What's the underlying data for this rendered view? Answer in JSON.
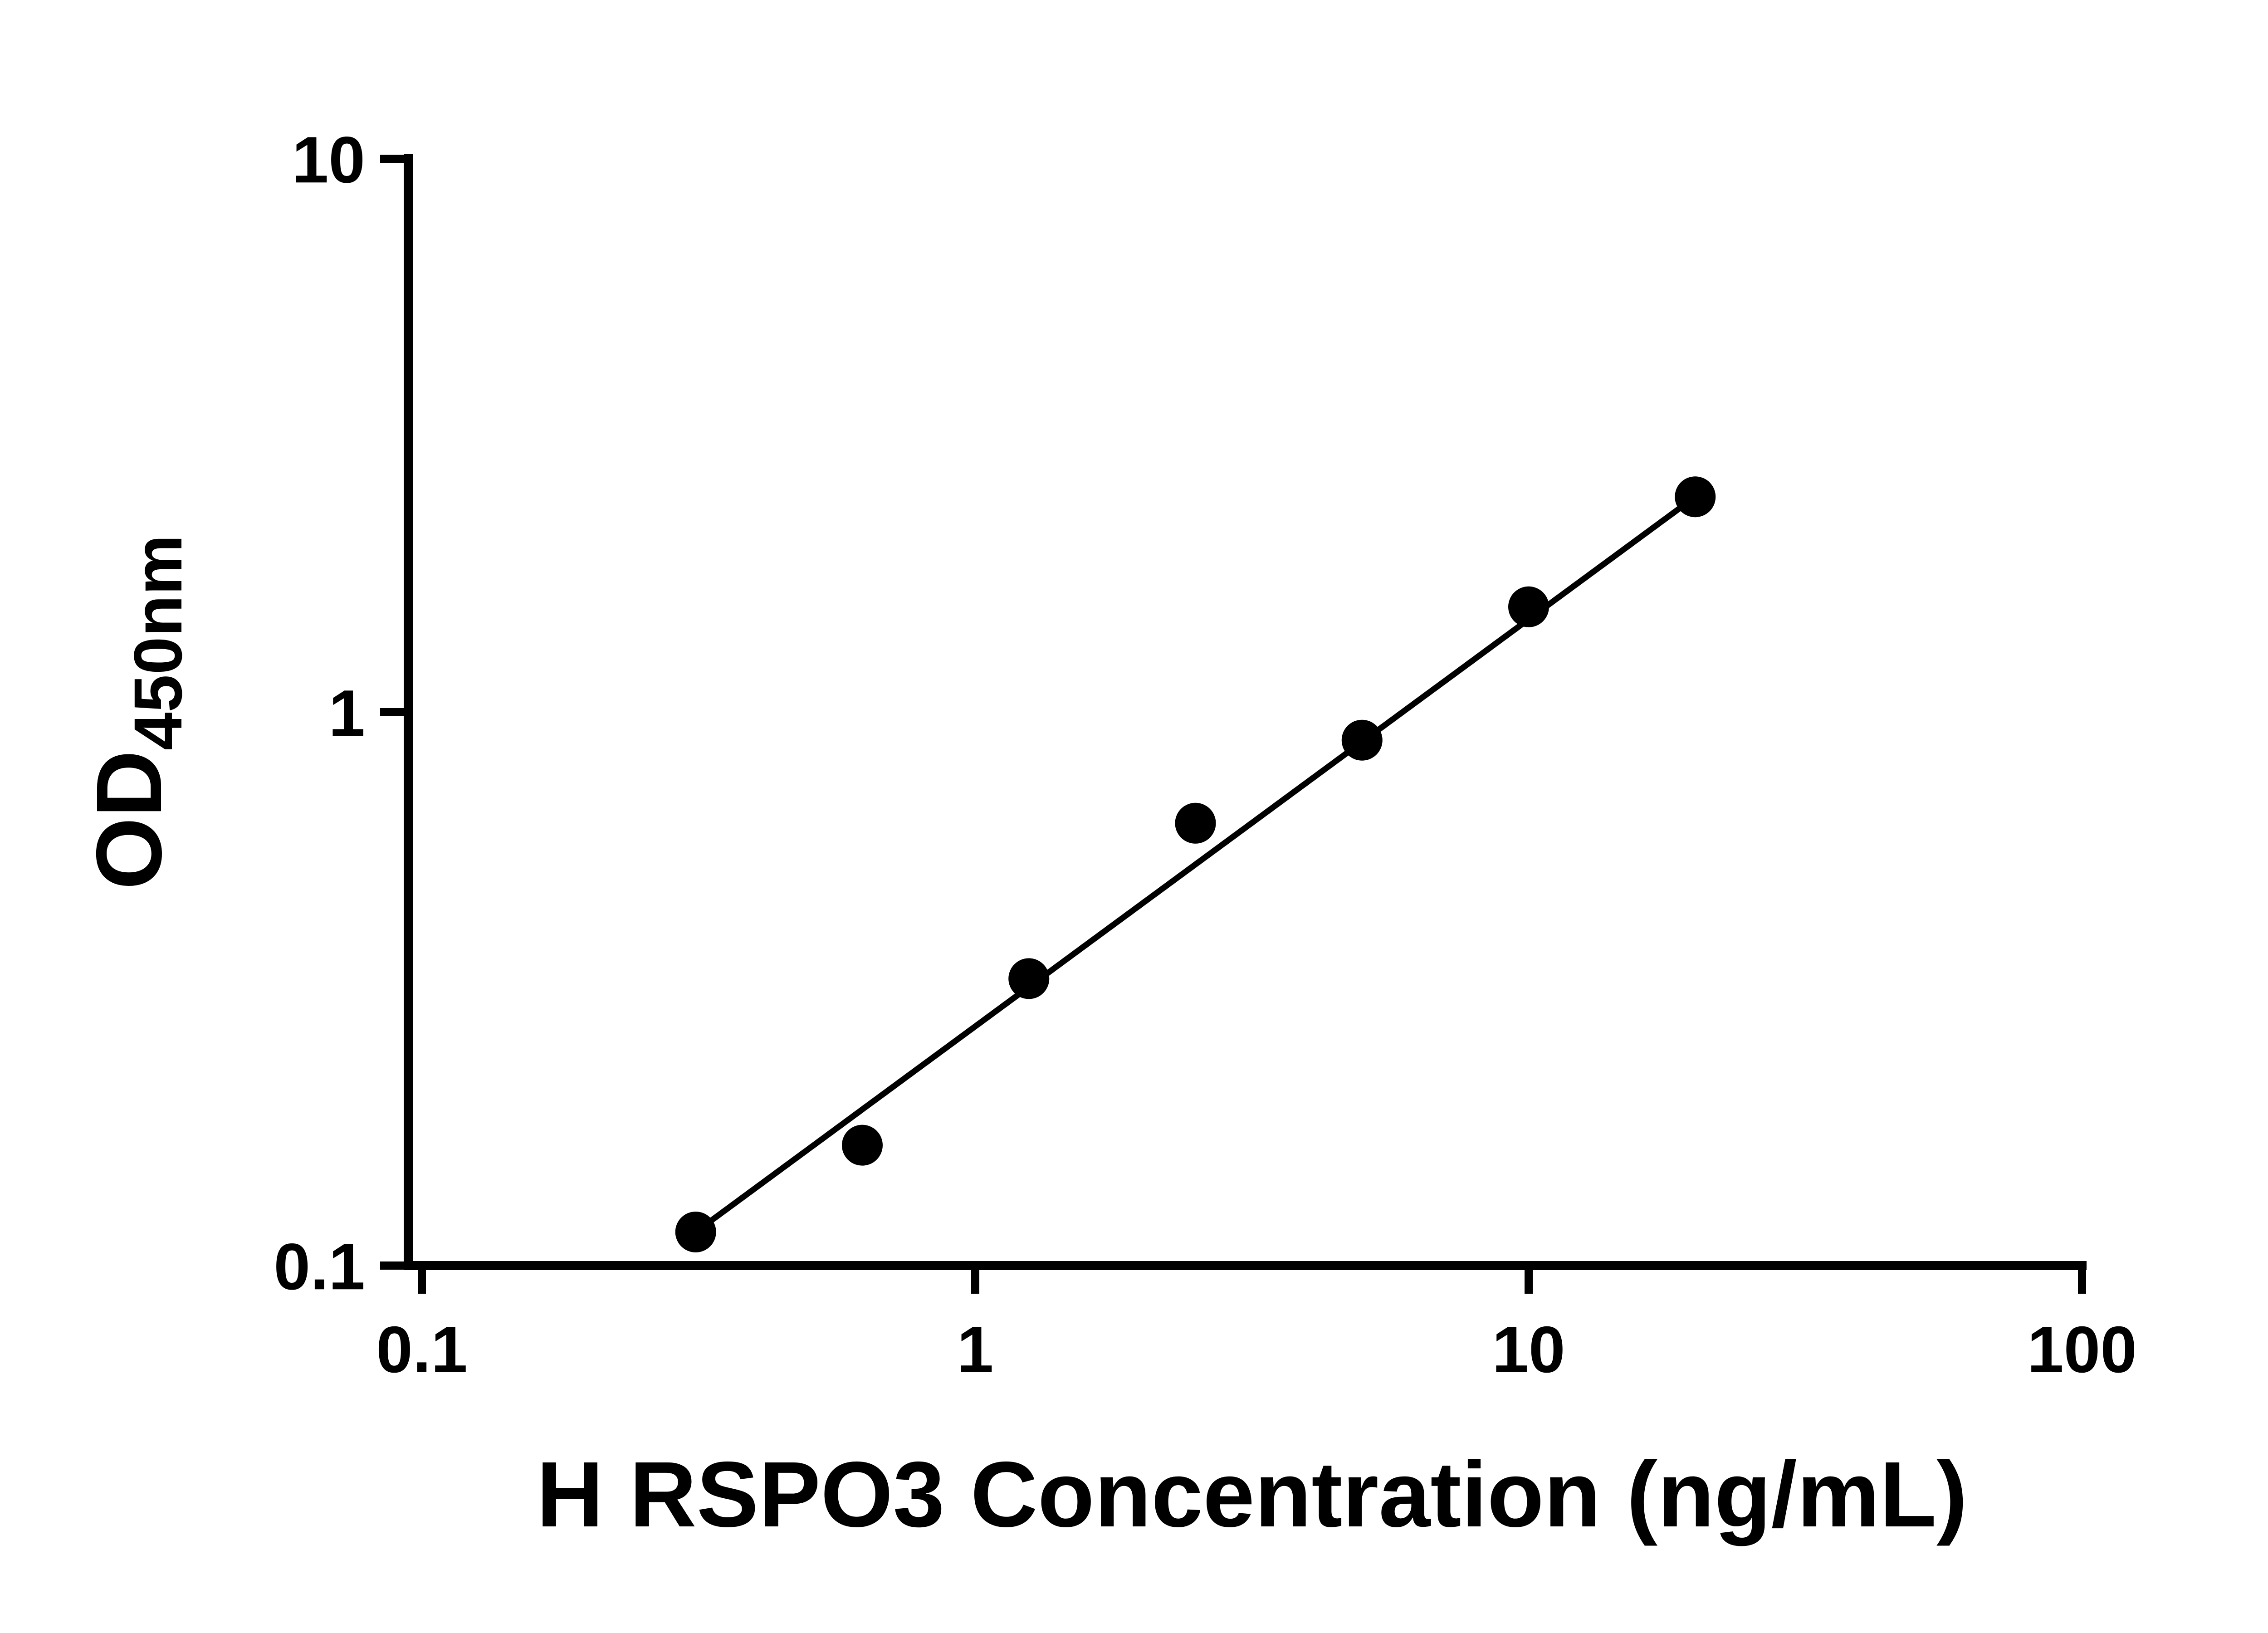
{
  "chart_data": {
    "type": "scatter",
    "title": "",
    "xlabel": "H RSPO3 Concentration (ng/mL)",
    "ylabel_main": "OD",
    "ylabel_sub": "450nm",
    "x_scale": "log",
    "y_scale": "log",
    "xlim": [
      0.1,
      100
    ],
    "ylim": [
      0.1,
      10
    ],
    "x_ticks": [
      0.1,
      1,
      10,
      100
    ],
    "x_tick_labels": [
      "0.1",
      "1",
      "10",
      "100"
    ],
    "y_ticks": [
      0.1,
      1,
      10
    ],
    "y_tick_labels": [
      "0.1",
      "1",
      "10"
    ],
    "grid": false,
    "legend": false,
    "series": [
      {
        "marker": "filled-circle",
        "color": "#000000",
        "x": [
          0.3125,
          0.625,
          1.25,
          2.5,
          5,
          10,
          20
        ],
        "y": [
          0.115,
          0.165,
          0.33,
          0.63,
          0.89,
          1.55,
          2.45
        ]
      }
    ],
    "trend_line": {
      "style": "straight-line-in-log-log",
      "color": "#000000",
      "width_hint": "thin"
    },
    "colors": {
      "axis": "#000000",
      "background": "#ffffff"
    }
  }
}
